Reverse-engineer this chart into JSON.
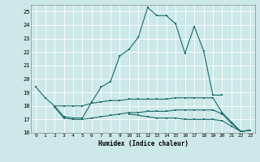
{
  "xlabel": "Humidex (Indice chaleur)",
  "bg_color": "#cce8e8",
  "line_color": "#1a6b6b",
  "grid_color": "#ffffff",
  "xlim": [
    -0.5,
    23.5
  ],
  "ylim": [
    16,
    25.5
  ],
  "xticks": [
    0,
    1,
    2,
    3,
    4,
    5,
    6,
    7,
    8,
    9,
    10,
    11,
    12,
    13,
    14,
    15,
    16,
    17,
    18,
    19,
    20,
    21,
    22,
    23
  ],
  "yticks": [
    16,
    17,
    18,
    19,
    20,
    21,
    22,
    23,
    24,
    25
  ],
  "line1_x": [
    0,
    1,
    2,
    3,
    4,
    5,
    6,
    7,
    8,
    9,
    10,
    11,
    12,
    13,
    14,
    15,
    16,
    17,
    18,
    19,
    20
  ],
  "line1_y": [
    19.4,
    18.6,
    18.0,
    17.2,
    17.1,
    17.1,
    18.3,
    19.4,
    19.8,
    21.7,
    22.2,
    23.1,
    25.3,
    24.7,
    24.7,
    24.1,
    21.9,
    23.9,
    22.1,
    18.8,
    18.8
  ],
  "line2_x": [
    2,
    3,
    4,
    5,
    6,
    7,
    8,
    9,
    10,
    11,
    12,
    13,
    14,
    15,
    16,
    17,
    18,
    19,
    20,
    21,
    22,
    23
  ],
  "line2_y": [
    18.0,
    18.0,
    18.0,
    18.0,
    18.2,
    18.3,
    18.4,
    18.4,
    18.5,
    18.5,
    18.5,
    18.5,
    18.5,
    18.6,
    18.6,
    18.6,
    18.6,
    18.6,
    17.5,
    16.8,
    16.1,
    16.2
  ],
  "line3_x": [
    2,
    3,
    4,
    5,
    6,
    7,
    8,
    9,
    10,
    11,
    12,
    13,
    14,
    15,
    16,
    17,
    18,
    19,
    20,
    21,
    22,
    23
  ],
  "line3_y": [
    17.9,
    17.1,
    17.0,
    17.0,
    17.1,
    17.2,
    17.3,
    17.4,
    17.5,
    17.5,
    17.6,
    17.6,
    17.6,
    17.7,
    17.7,
    17.7,
    17.7,
    17.7,
    17.4,
    16.7,
    16.1,
    16.2
  ],
  "line4_x": [
    10,
    11,
    12,
    13,
    14,
    15,
    16,
    17,
    18,
    19,
    20,
    21,
    22,
    23
  ],
  "line4_y": [
    17.4,
    17.3,
    17.2,
    17.1,
    17.1,
    17.1,
    17.0,
    17.0,
    17.0,
    17.0,
    16.9,
    16.5,
    16.1,
    16.2
  ]
}
